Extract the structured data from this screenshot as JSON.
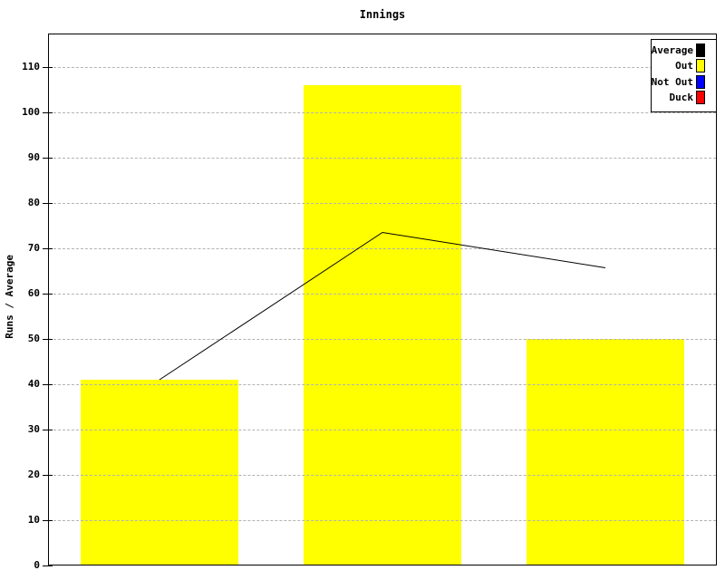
{
  "chart_data": {
    "type": "bar",
    "title": "Innings",
    "ylabel": "Runs / Average",
    "ylim": [
      0,
      117.4
    ],
    "ytick_step": 10,
    "ytick_max": 110,
    "grid": true,
    "legend_position": "top-right",
    "series": [
      {
        "name": "Out",
        "type": "bar",
        "color": "#ffff00",
        "values": [
          41,
          106,
          50
        ]
      },
      {
        "name": "Average",
        "type": "line",
        "color": "#000000",
        "values": [
          41,
          73.5,
          65.7
        ]
      }
    ],
    "legend": [
      {
        "label": "Average",
        "color": "#000000"
      },
      {
        "label": "Out",
        "color": "#ffff00"
      },
      {
        "label": "Not Out",
        "color": "#0000ff"
      },
      {
        "label": "Duck",
        "color": "#ff0000"
      }
    ],
    "colors": {
      "background": "#ffffff",
      "axis": "#000000",
      "gridline": "#b3b3b3"
    }
  }
}
